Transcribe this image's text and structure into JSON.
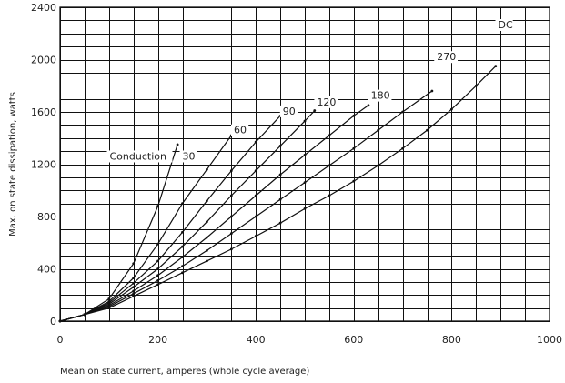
{
  "chart_data": {
    "type": "line",
    "xlabel": "Mean on state current, amperes (whole cycle average)",
    "ylabel": "Max. on state dissipation, watts",
    "xlim": [
      0,
      1000
    ],
    "ylim": [
      0,
      2400
    ],
    "x_ticks": [
      "0",
      "200",
      "400",
      "600",
      "800",
      "1000"
    ],
    "y_ticks": [
      "0",
      "400",
      "800",
      "1200",
      "1600",
      "2000",
      "2400"
    ],
    "grid": true,
    "conduction_label": "Conduction",
    "series": [
      {
        "name": "30",
        "points": [
          [
            0,
            0
          ],
          [
            50,
            50
          ],
          [
            100,
            170
          ],
          [
            150,
            440
          ],
          [
            200,
            880
          ],
          [
            240,
            1350
          ]
        ]
      },
      {
        "name": "60",
        "points": [
          [
            0,
            0
          ],
          [
            50,
            50
          ],
          [
            100,
            150
          ],
          [
            150,
            330
          ],
          [
            200,
            590
          ],
          [
            250,
            900
          ],
          [
            300,
            1160
          ],
          [
            350,
            1420
          ]
        ]
      },
      {
        "name": "90",
        "points": [
          [
            0,
            0
          ],
          [
            50,
            50
          ],
          [
            100,
            140
          ],
          [
            150,
            290
          ],
          [
            200,
            460
          ],
          [
            250,
            680
          ],
          [
            300,
            920
          ],
          [
            350,
            1150
          ],
          [
            400,
            1370
          ],
          [
            450,
            1570
          ]
        ]
      },
      {
        "name": "120",
        "points": [
          [
            0,
            0
          ],
          [
            50,
            50
          ],
          [
            100,
            130
          ],
          [
            150,
            260
          ],
          [
            200,
            400
          ],
          [
            250,
            570
          ],
          [
            300,
            760
          ],
          [
            350,
            960
          ],
          [
            400,
            1150
          ],
          [
            450,
            1340
          ],
          [
            500,
            1530
          ],
          [
            520,
            1610
          ]
        ]
      },
      {
        "name": "180",
        "points": [
          [
            0,
            0
          ],
          [
            50,
            50
          ],
          [
            100,
            120
          ],
          [
            150,
            230
          ],
          [
            200,
            350
          ],
          [
            250,
            490
          ],
          [
            300,
            640
          ],
          [
            350,
            800
          ],
          [
            400,
            960
          ],
          [
            450,
            1120
          ],
          [
            500,
            1270
          ],
          [
            550,
            1420
          ],
          [
            600,
            1570
          ],
          [
            630,
            1650
          ]
        ]
      },
      {
        "name": "270",
        "points": [
          [
            0,
            0
          ],
          [
            50,
            50
          ],
          [
            100,
            110
          ],
          [
            150,
            210
          ],
          [
            200,
            310
          ],
          [
            250,
            420
          ],
          [
            300,
            540
          ],
          [
            350,
            670
          ],
          [
            400,
            800
          ],
          [
            450,
            930
          ],
          [
            500,
            1060
          ],
          [
            550,
            1190
          ],
          [
            600,
            1320
          ],
          [
            650,
            1460
          ],
          [
            700,
            1600
          ],
          [
            760,
            1760
          ]
        ]
      },
      {
        "name": "DC",
        "points": [
          [
            0,
            0
          ],
          [
            50,
            50
          ],
          [
            100,
            100
          ],
          [
            150,
            190
          ],
          [
            200,
            280
          ],
          [
            250,
            370
          ],
          [
            300,
            460
          ],
          [
            350,
            550
          ],
          [
            400,
            650
          ],
          [
            450,
            750
          ],
          [
            500,
            860
          ],
          [
            550,
            960
          ],
          [
            600,
            1070
          ],
          [
            650,
            1190
          ],
          [
            700,
            1320
          ],
          [
            750,
            1460
          ],
          [
            800,
            1620
          ],
          [
            850,
            1800
          ],
          [
            890,
            1950
          ]
        ]
      }
    ],
    "curve_labels": [
      {
        "name": "30",
        "x": 250,
        "y": 1235
      },
      {
        "name": "60",
        "x": 355,
        "y": 1435
      },
      {
        "name": "90",
        "x": 455,
        "y": 1580
      },
      {
        "name": "120",
        "x": 525,
        "y": 1650
      },
      {
        "name": "180",
        "x": 635,
        "y": 1700
      },
      {
        "name": "270",
        "x": 770,
        "y": 1995
      },
      {
        "name": "DC",
        "x": 895,
        "y": 2240
      }
    ]
  }
}
